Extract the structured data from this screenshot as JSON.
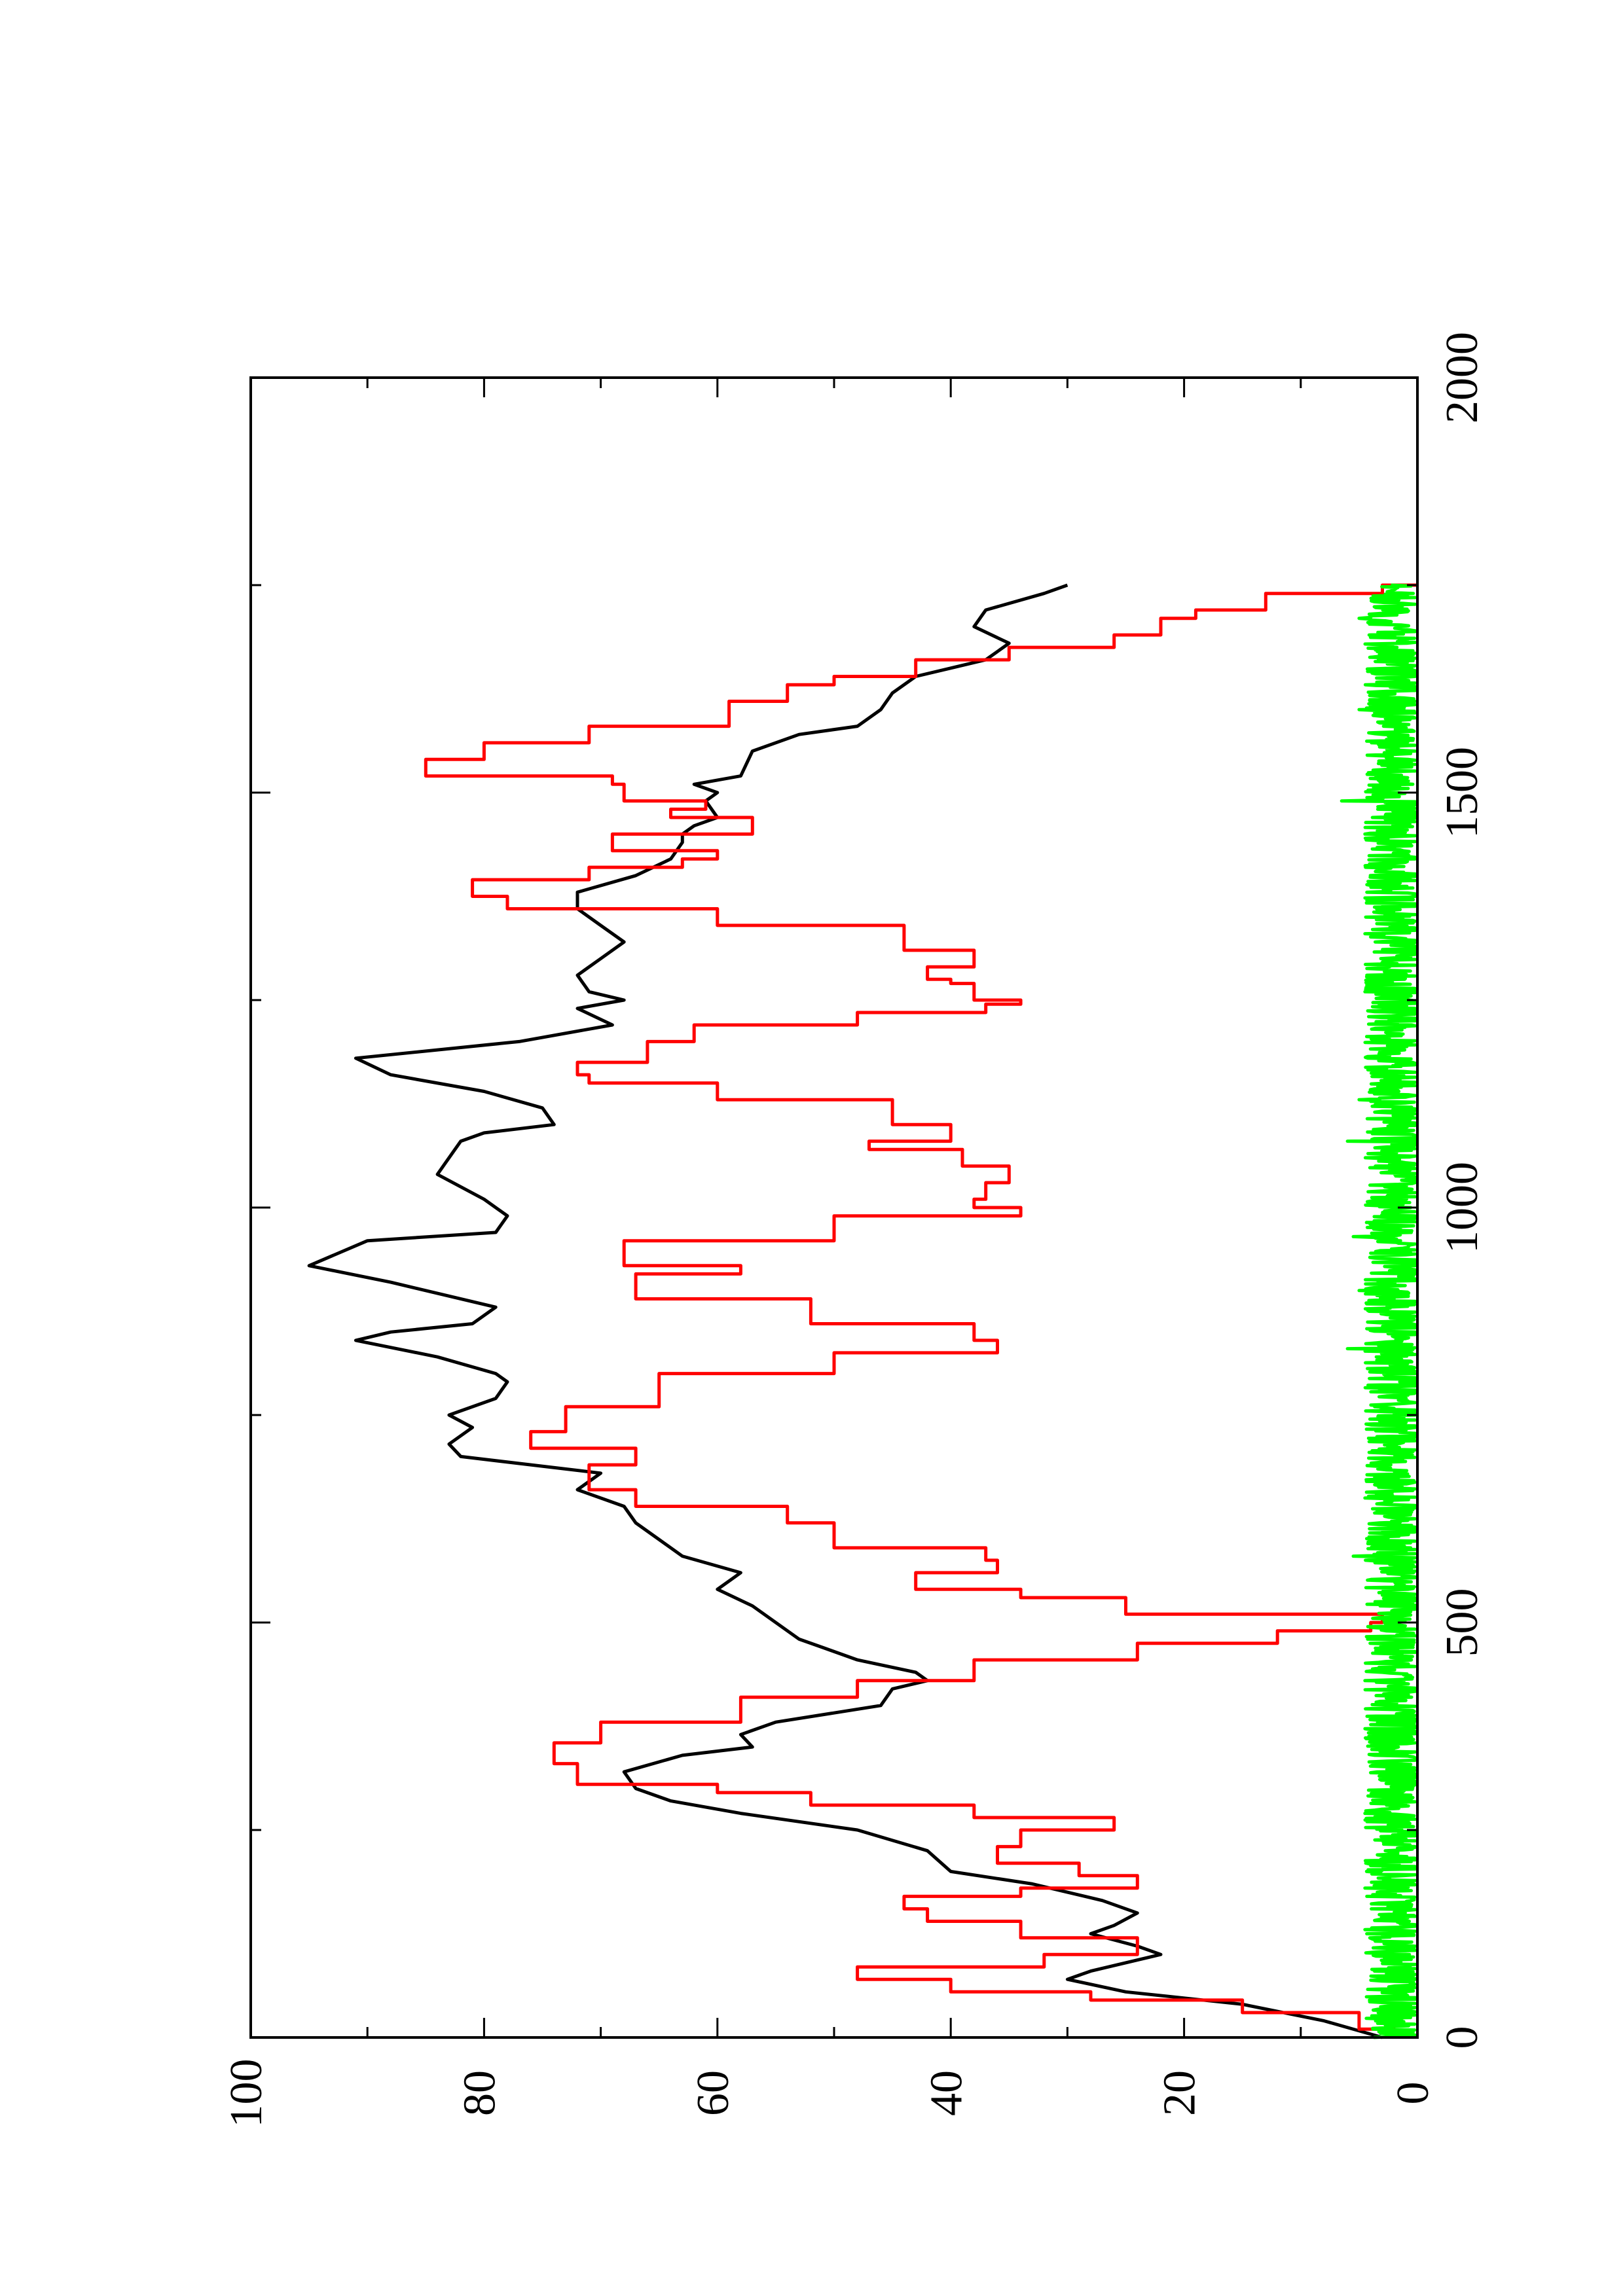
{
  "chart_data": {
    "type": "line",
    "orientation": "rotated-90-ccw",
    "title": "",
    "xlabel": "",
    "ylabel": "",
    "xlim": [
      0,
      2000
    ],
    "ylim": [
      0,
      100
    ],
    "x_ticks": [
      0,
      500,
      1000,
      1500,
      2000
    ],
    "x_tick_labels": [
      "0",
      "500",
      "1000",
      "1500",
      "2000"
    ],
    "y_ticks": [
      0,
      20,
      40,
      60,
      80,
      100
    ],
    "y_tick_labels": [
      "0",
      "20",
      "40",
      "60",
      "80",
      "100"
    ],
    "grid": false,
    "legend": "none",
    "series": [
      {
        "color": "#000000",
        "step": false,
        "x": [
          0,
          20,
          40,
          55,
          70,
          80,
          100,
          110,
          125,
          135,
          150,
          165,
          185,
          200,
          225,
          250,
          270,
          285,
          300,
          320,
          340,
          350,
          365,
          380,
          400,
          420,
          430,
          440,
          455,
          470,
          480,
          500,
          520,
          540,
          560,
          580,
          600,
          620,
          640,
          660,
          680,
          700,
          715,
          735,
          750,
          770,
          790,
          800,
          820,
          840,
          850,
          860,
          880,
          910,
          930,
          960,
          970,
          990,
          1010,
          1040,
          1060,
          1080,
          1090,
          1100,
          1120,
          1140,
          1160,
          1180,
          1200,
          1220,
          1240,
          1250,
          1260,
          1280,
          1300,
          1320,
          1340,
          1360,
          1380,
          1400,
          1420,
          1440,
          1450,
          1460,
          1470,
          1490,
          1500,
          1510,
          1520,
          1550,
          1570,
          1580,
          1600,
          1620,
          1640,
          1650,
          1660,
          1680,
          1700,
          1720,
          1740,
          1750
        ],
        "values": [
          3,
          8,
          15,
          25,
          30,
          28,
          22,
          24,
          28,
          26,
          24,
          27,
          33,
          40,
          42,
          48,
          58,
          64,
          67,
          68,
          63,
          57,
          58,
          55,
          46,
          45,
          42,
          43,
          48,
          51,
          53,
          55,
          57,
          60,
          58,
          63,
          65,
          67,
          68,
          72,
          70,
          82,
          83,
          81,
          83,
          79,
          78,
          79,
          84,
          91,
          88,
          81,
          79,
          88,
          95,
          90,
          79,
          78,
          80,
          84,
          83,
          82,
          80,
          74,
          75,
          80,
          88,
          91,
          77,
          69,
          72,
          68,
          71,
          72,
          70,
          68,
          70,
          72,
          72,
          67,
          64,
          63,
          63,
          62,
          60,
          61,
          60,
          62,
          58,
          57,
          53,
          48,
          46,
          45,
          43,
          40,
          37,
          35,
          38,
          37,
          32,
          30
        ]
      },
      {
        "color": "#ff0000",
        "step": true,
        "x": [
          0,
          10,
          30,
          45,
          55,
          70,
          85,
          100,
          120,
          140,
          155,
          170,
          180,
          195,
          210,
          230,
          250,
          265,
          280,
          295,
          305,
          330,
          355,
          380,
          410,
          430,
          455,
          475,
          490,
          500,
          510,
          530,
          540,
          560,
          575,
          590,
          620,
          640,
          660,
          670,
          690,
          710,
          730,
          760,
          800,
          825,
          840,
          860,
          890,
          920,
          930,
          960,
          990,
          1000,
          1010,
          1030,
          1050,
          1070,
          1080,
          1100,
          1130,
          1150,
          1160,
          1175,
          1200,
          1220,
          1235,
          1245,
          1250,
          1270,
          1275,
          1290,
          1310,
          1340,
          1360,
          1375,
          1395,
          1410,
          1420,
          1430,
          1450,
          1470,
          1480,
          1490,
          1510,
          1520,
          1540,
          1560,
          1580,
          1610,
          1630,
          1640,
          1660,
          1675,
          1690,
          1710,
          1720,
          1740,
          1750
        ],
        "values": [
          2,
          5,
          15,
          28,
          40,
          48,
          32,
          24,
          34,
          42,
          44,
          34,
          24,
          29,
          36,
          34,
          26,
          38,
          52,
          60,
          72,
          74,
          70,
          58,
          48,
          38,
          24,
          12,
          4,
          3,
          25,
          34,
          43,
          36,
          37,
          50,
          54,
          67,
          71,
          71,
          67,
          76,
          73,
          65,
          50,
          36,
          38,
          52,
          67,
          58,
          68,
          50,
          34,
          38,
          37,
          35,
          39,
          47,
          40,
          45,
          60,
          71,
          72,
          66,
          62,
          48,
          37,
          34,
          38,
          40,
          42,
          38,
          44,
          60,
          78,
          81,
          71,
          63,
          60,
          69,
          57,
          64,
          61,
          68,
          69,
          85,
          80,
          71,
          59,
          54,
          50,
          43,
          35,
          26,
          22,
          19,
          13,
          3,
          0
        ]
      },
      {
        "color": "#00ff00",
        "step": false,
        "noise": true,
        "x_range": [
          0,
          1750
        ],
        "mean": 2,
        "amplitude": 2.5,
        "spikes": [
          {
            "x": 130,
            "value": 4.5
          },
          {
            "x": 180,
            "value": 4.5
          },
          {
            "x": 270,
            "value": 4.5
          },
          {
            "x": 430,
            "value": 4.5
          },
          {
            "x": 580,
            "value": 5.5
          },
          {
            "x": 650,
            "value": 4.5
          },
          {
            "x": 830,
            "value": 6
          },
          {
            "x": 900,
            "value": 5
          },
          {
            "x": 965,
            "value": 5.5
          },
          {
            "x": 1080,
            "value": 6
          },
          {
            "x": 1130,
            "value": 5
          },
          {
            "x": 1260,
            "value": 4.5
          },
          {
            "x": 1330,
            "value": 4.5
          },
          {
            "x": 1450,
            "value": 4.5
          },
          {
            "x": 1490,
            "value": 6.5
          },
          {
            "x": 1600,
            "value": 5
          },
          {
            "x": 1710,
            "value": 5
          }
        ]
      }
    ]
  }
}
